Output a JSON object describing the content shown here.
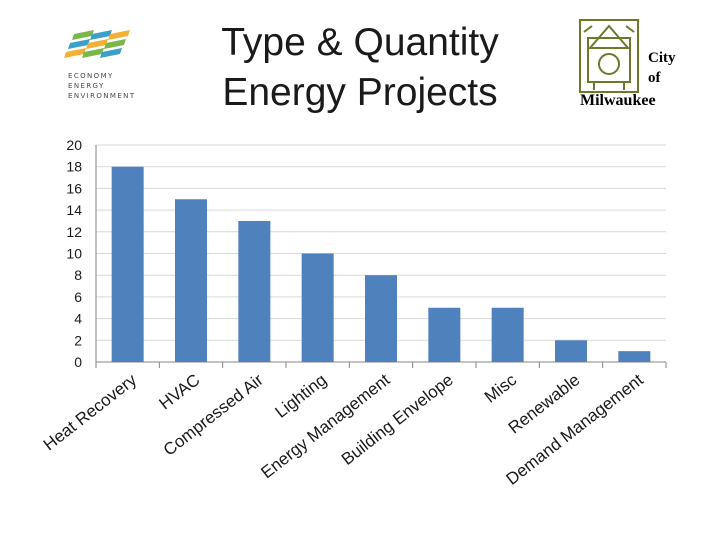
{
  "slide": {
    "title_line1": "Type & Quantity",
    "title_line2": "Energy Projects"
  },
  "logo_left": {
    "line1": "ECONOMY",
    "line2": "ENERGY",
    "line3": "ENVIRONMENT",
    "colors": [
      "#7ab648",
      "#3aa0c8",
      "#f2b134"
    ]
  },
  "logo_right": {
    "city": "City",
    "of": "of",
    "name": "Milwaukee",
    "color": "#6b7a2a"
  },
  "chart_data": {
    "type": "bar",
    "categories": [
      "Heat Recovery",
      "HVAC",
      "Compressed Air",
      "Lighting",
      "Energy Management",
      "Building Envelope",
      "Misc",
      "Renewable",
      "Demand Management"
    ],
    "values": [
      18,
      15,
      13,
      10,
      8,
      5,
      5,
      2,
      1
    ],
    "ylim": [
      0,
      20
    ],
    "yticks": [
      0,
      2,
      4,
      6,
      8,
      10,
      12,
      14,
      16,
      18,
      20
    ],
    "grid": true,
    "bar_color": "#4f81bd",
    "title": "",
    "xlabel": "",
    "ylabel": ""
  }
}
